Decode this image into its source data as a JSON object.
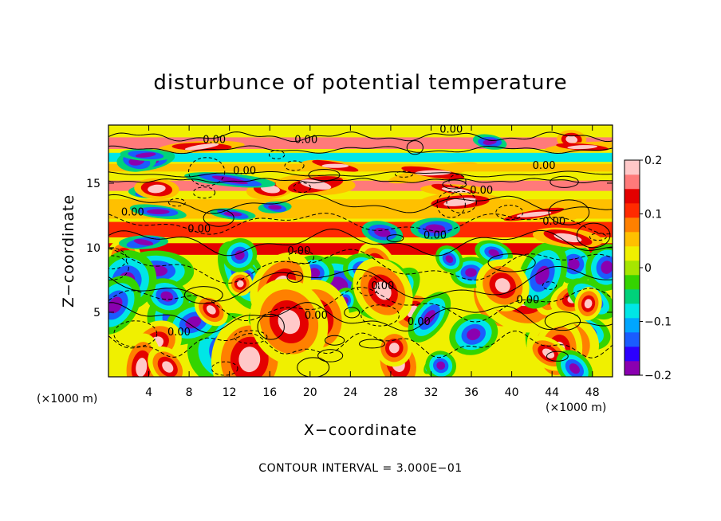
{
  "chart_data": {
    "type": "heatmap",
    "title": "disturbunce of potential temperature",
    "xlabel": "X−coordinate",
    "ylabel": "Z−coordinate",
    "x_unit": "(×1000 m)",
    "z_unit": "(×1000 m)",
    "xlim": [
      0,
      50
    ],
    "ylim": [
      0,
      19.5
    ],
    "x_ticks": [
      4,
      8,
      12,
      16,
      20,
      24,
      28,
      32,
      36,
      40,
      44,
      48
    ],
    "y_ticks": [
      5,
      10,
      15
    ],
    "colorbar": {
      "range": [
        -0.2,
        0.2
      ],
      "ticks": [
        0.2,
        0.1,
        0,
        -0.1,
        -0.2
      ],
      "tick_labels": [
        "0.2",
        "0.1",
        "0",
        "−0.1",
        "−0.2"
      ],
      "colors": [
        "#8a00b0",
        "#2c00ff",
        "#1a5cff",
        "#00a6ff",
        "#00e6e6",
        "#00d27a",
        "#34d400",
        "#a6e600",
        "#f0f000",
        "#ffc000",
        "#ff8000",
        "#ff2a00",
        "#e40000",
        "#ff7a7a",
        "#ffc8c8"
      ]
    },
    "contour_interval_note": "CONTOUR INTERVAL = 3.000E−01",
    "contour_label_text": "0.00",
    "contour_labels": [
      {
        "x": 10.5,
        "z": 18.1
      },
      {
        "x": 19.6,
        "z": 18.1
      },
      {
        "x": 34.0,
        "z": 18.9
      },
      {
        "x": 13.5,
        "z": 15.7
      },
      {
        "x": 43.2,
        "z": 16.1
      },
      {
        "x": 37.0,
        "z": 14.2
      },
      {
        "x": 2.4,
        "z": 12.5
      },
      {
        "x": 9.0,
        "z": 11.2
      },
      {
        "x": 32.4,
        "z": 10.7
      },
      {
        "x": 44.2,
        "z": 11.8
      },
      {
        "x": 18.9,
        "z": 9.5
      },
      {
        "x": 27.2,
        "z": 6.8
      },
      {
        "x": 20.6,
        "z": 4.5
      },
      {
        "x": 41.6,
        "z": 5.7
      },
      {
        "x": 30.8,
        "z": 4.0
      },
      {
        "x": 7.0,
        "z": 3.2
      }
    ],
    "bands": [
      {
        "z": 18.1,
        "value": 0.17,
        "width": 0.9
      },
      {
        "z": 17.0,
        "value": -0.08,
        "width": 0.7
      },
      {
        "z": 16.2,
        "value": 0.04,
        "width": 0.6
      },
      {
        "z": 14.8,
        "value": 0.15,
        "width": 0.8
      },
      {
        "z": 13.0,
        "value": 0.06,
        "width": 1.5
      },
      {
        "z": 11.4,
        "value": 0.1,
        "width": 1.2
      },
      {
        "z": 9.9,
        "value": 0.14,
        "width": 0.9
      }
    ]
  }
}
